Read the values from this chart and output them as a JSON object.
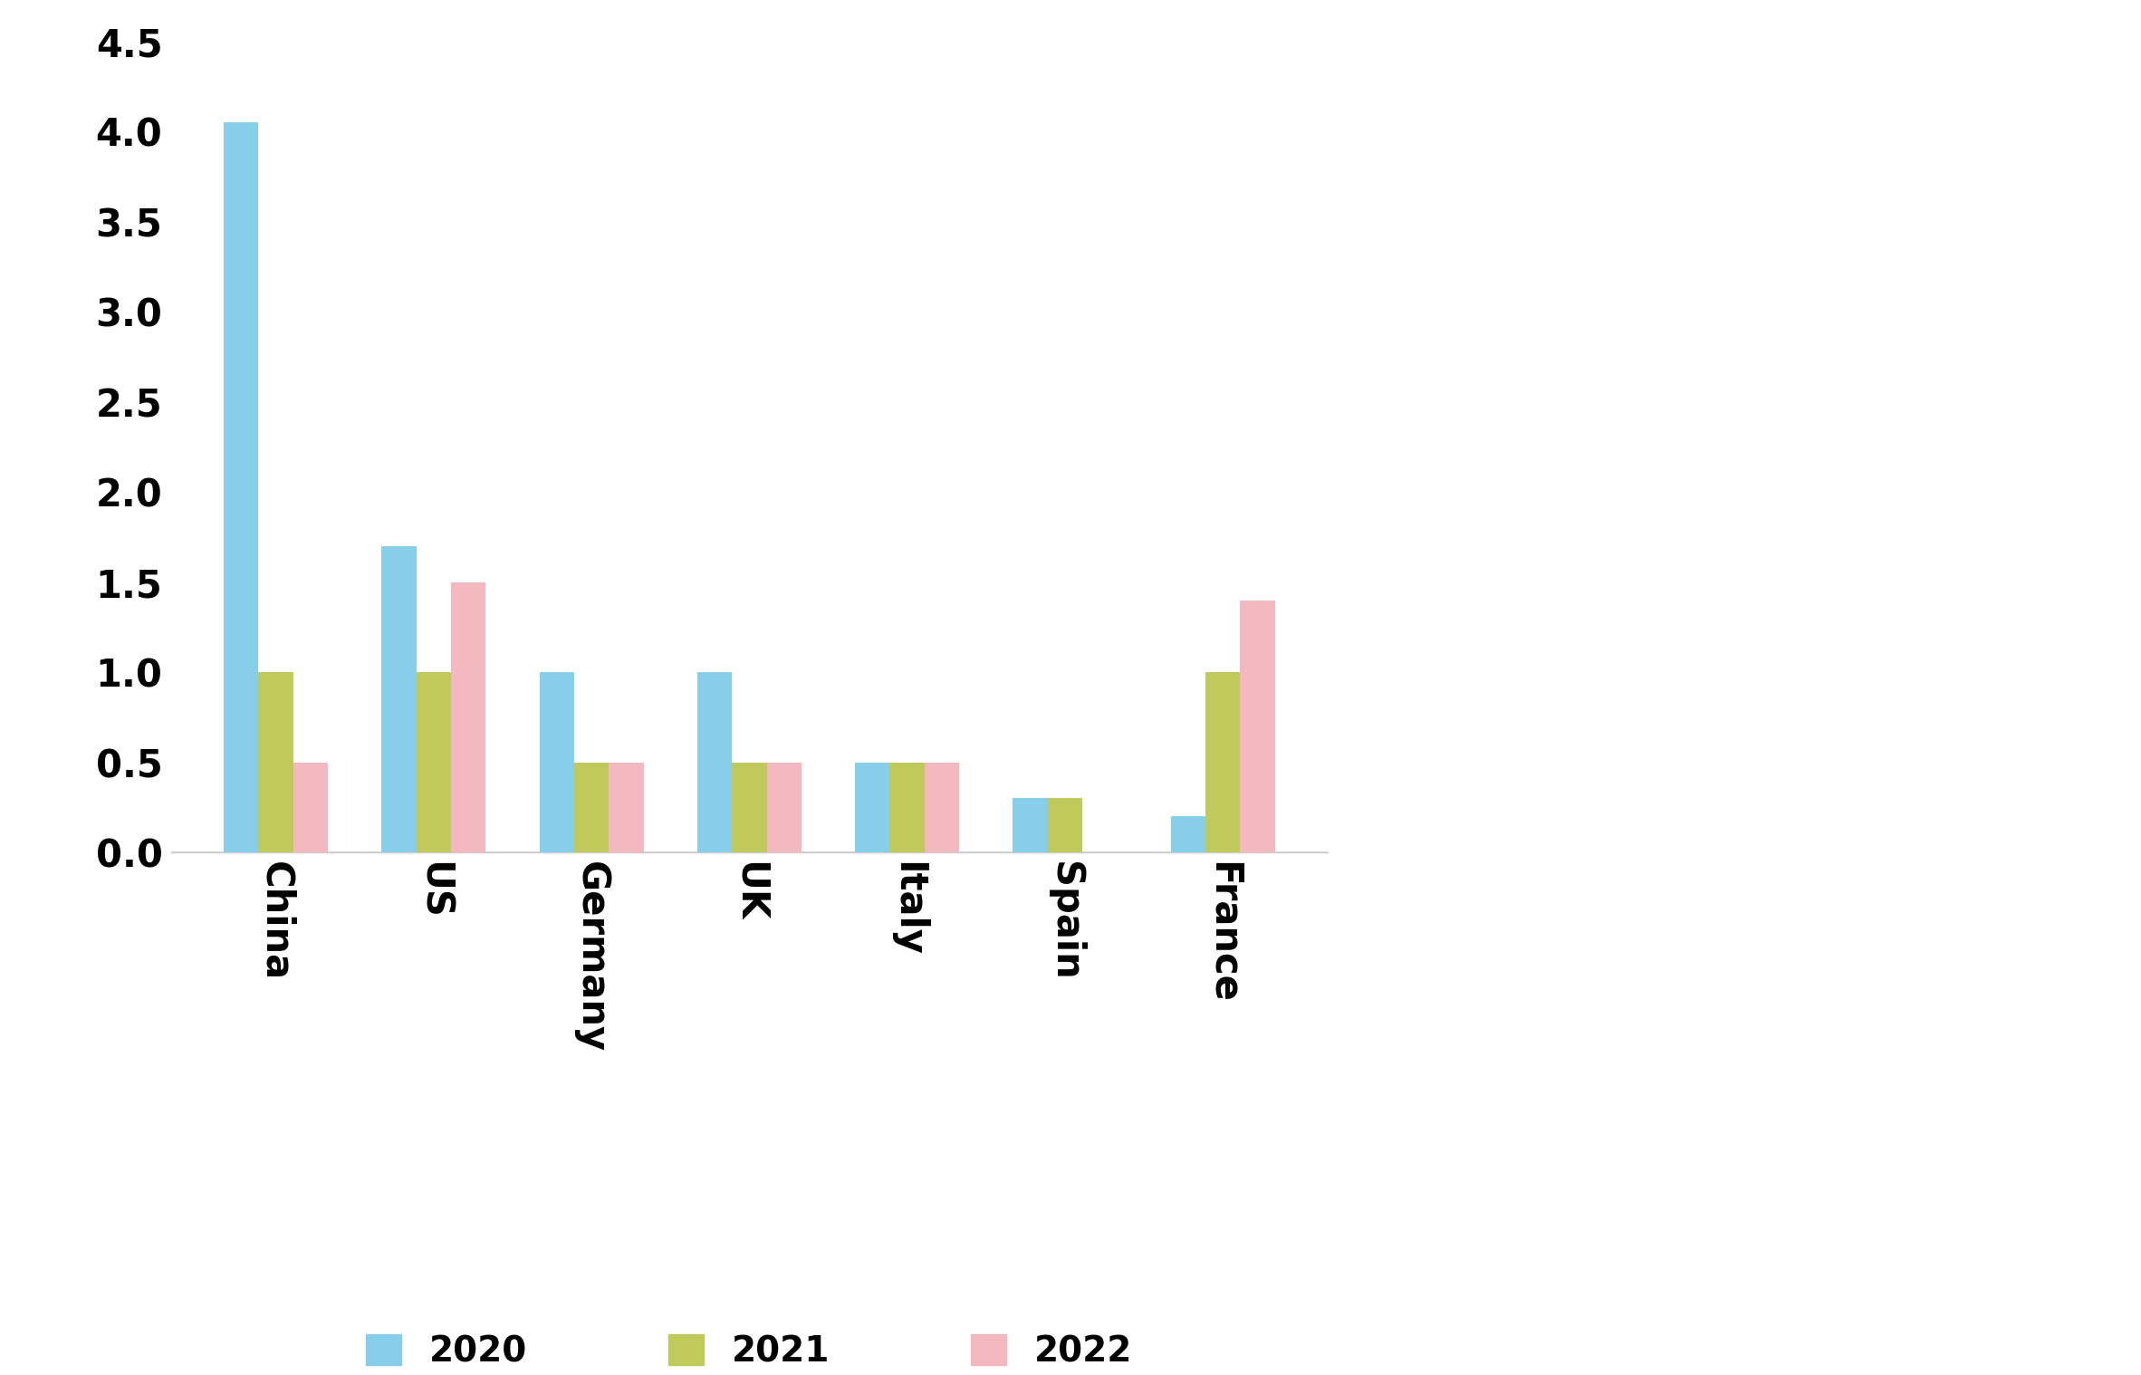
{
  "categories": [
    "China",
    "US",
    "Germany",
    "UK",
    "Italy",
    "Spain",
    "France"
  ],
  "series": {
    "2020": [
      4.05,
      1.7,
      1.0,
      1.0,
      0.5,
      0.3,
      0.2
    ],
    "2021": [
      1.0,
      1.0,
      0.5,
      0.5,
      0.5,
      0.3,
      1.0
    ],
    "2022": [
      0.5,
      1.5,
      0.5,
      0.5,
      0.5,
      0.0,
      1.4
    ]
  },
  "colors": {
    "2020": "#87CEEB",
    "2021": "#BFCA5A",
    "2022": "#F4B8C1"
  },
  "ylim": [
    0,
    4.5
  ],
  "yticks": [
    0.0,
    0.5,
    1.0,
    1.5,
    2.0,
    2.5,
    3.0,
    3.5,
    4.0,
    4.5
  ],
  "background_color": "#ffffff",
  "tick_label_fontsize": 30,
  "legend_fontsize": 28,
  "bar_width": 0.22
}
